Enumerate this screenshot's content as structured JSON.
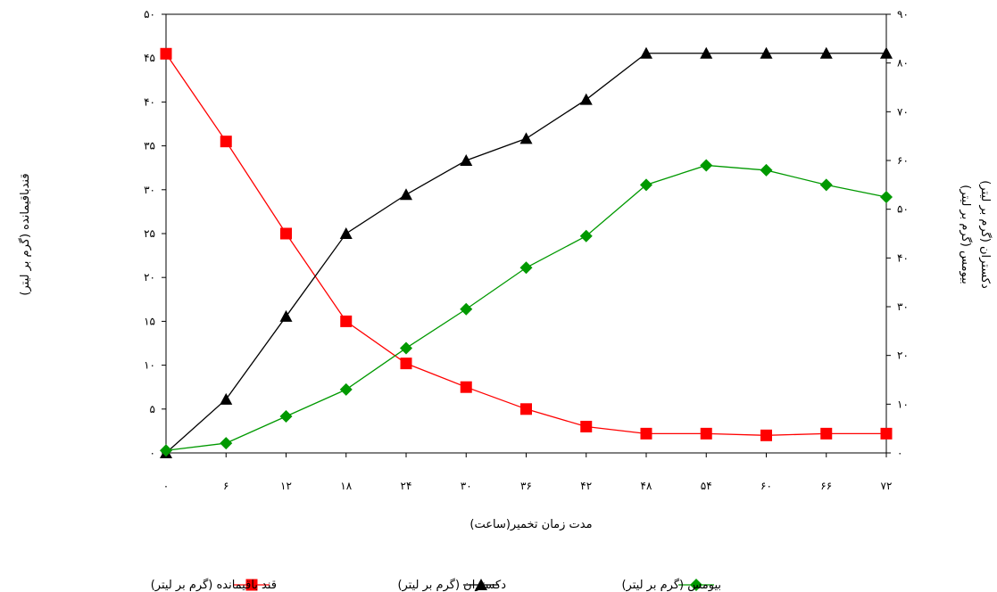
{
  "chart_data": {
    "type": "line",
    "x": [
      0,
      6,
      12,
      18,
      24,
      30,
      36,
      42,
      48,
      54,
      60,
      66,
      72
    ],
    "x_tick_labels": [
      "۰",
      "۶",
      "۱۲",
      "۱۸",
      "۲۴",
      "۳۰",
      "۳۶",
      "۴۲",
      "۴۸",
      "۵۴",
      "۶۰",
      "۶۶",
      "۷۲"
    ],
    "xlim": [
      0,
      72
    ],
    "xlabel": "مدت زمان تخمیر(ساعت)",
    "y_left": {
      "label": "قندباقیمانده (گرم بر لیتر)",
      "lim": [
        0,
        50
      ],
      "ticks": [
        0,
        5,
        10,
        15,
        20,
        25,
        30,
        35,
        40,
        45,
        50
      ],
      "tick_labels": [
        "۰",
        "۵",
        "۱۰",
        "۱۵",
        "۲۰",
        "۲۵",
        "۳۰",
        "۳۵",
        "۴۰",
        "۴۵",
        "۵۰"
      ]
    },
    "y_right": {
      "label_line1": "بیومس (گرم بر لیتر)",
      "label_line2": "دکستران (گرم بر لیتر)",
      "lim": [
        0,
        90
      ],
      "ticks": [
        0,
        10,
        20,
        30,
        40,
        50,
        60,
        70,
        80,
        90
      ],
      "tick_labels": [
        "۰",
        "۱۰",
        "۲۰",
        "۳۰",
        "۴۰",
        "۵۰",
        "۶۰",
        "۷۰",
        "۸۰",
        "۹۰"
      ]
    },
    "grid": false,
    "legend_position": "bottom",
    "series": [
      {
        "name": "قند باقیمانده (گرم بر لیتر)",
        "axis": "left",
        "marker": "square",
        "color": "#ff0000",
        "values": [
          45.5,
          35.5,
          25.0,
          15.0,
          10.2,
          7.5,
          5.0,
          3.0,
          2.2,
          2.2,
          2.0,
          2.2,
          2.2
        ]
      },
      {
        "name": "دکستران (گرم بر لیتر)",
        "axis": "right",
        "marker": "triangle",
        "color": "#000000",
        "values": [
          0,
          11,
          28,
          45,
          53,
          60,
          64.5,
          72.5,
          82,
          82,
          82,
          82,
          82
        ]
      },
      {
        "name": "بیومس (گرم بر لیتر)",
        "axis": "right",
        "marker": "diamond",
        "color": "#009900",
        "values": [
          0.5,
          2,
          7.5,
          13,
          21.5,
          29.5,
          38,
          44.5,
          55,
          59,
          58,
          55,
          52.5
        ]
      }
    ]
  }
}
